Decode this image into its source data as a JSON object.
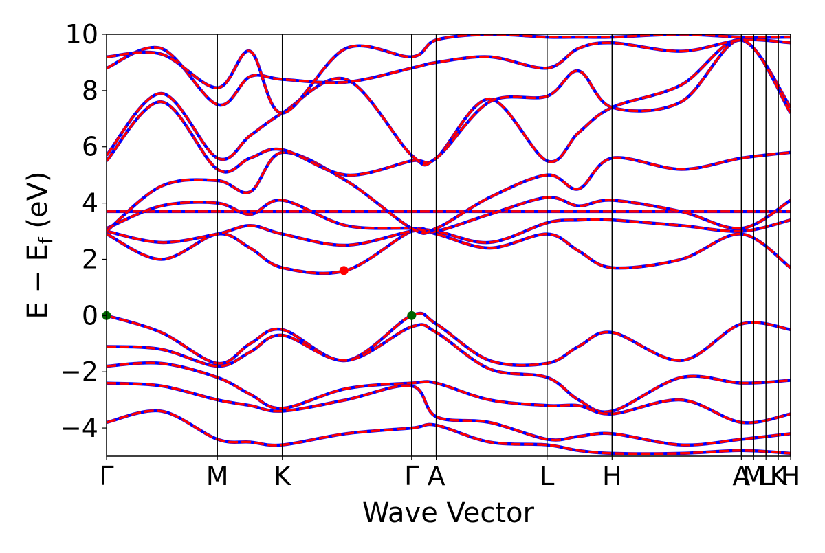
{
  "chart_data": {
    "type": "line",
    "title": "",
    "xlabel": "Wave Vector",
    "ylabel": "E − E",
    "ylabel_sub": "f",
    "ylabel_unit": " (eV)",
    "ylim": [
      -5,
      10
    ],
    "yticks": [
      {
        "value": -4,
        "label": "−4"
      },
      {
        "value": -2,
        "label": "−2"
      },
      {
        "value": 0,
        "label": "0"
      },
      {
        "value": 2,
        "label": "2"
      },
      {
        "value": 4,
        "label": "4"
      },
      {
        "value": 6,
        "label": "6"
      },
      {
        "value": 8,
        "label": "8"
      },
      {
        "value": 10,
        "label": "10"
      }
    ],
    "kpoints": [
      {
        "label": "Γ",
        "pos": 0.0
      },
      {
        "label": "M",
        "pos": 0.162
      },
      {
        "label": "K",
        "pos": 0.257
      },
      {
        "label": "Γ",
        "pos": 0.446
      },
      {
        "label": "A",
        "pos": 0.482
      },
      {
        "label": "L",
        "pos": 0.644
      },
      {
        "label": "H",
        "pos": 0.739
      },
      {
        "label": "A",
        "pos": 0.928
      },
      {
        "label": "M",
        "pos": 0.946
      },
      {
        "label": "L",
        "pos": 0.964
      },
      {
        "label": "K",
        "pos": 0.982
      },
      {
        "label": "H",
        "pos": 1.0
      }
    ],
    "colors": {
      "spin_up": "#0000ff",
      "spin_down": "#ff0000",
      "vbm": "#006400",
      "cbm": "#ff0000"
    },
    "markers": [
      {
        "name": "vbm",
        "x": 0.0,
        "y": 0.0,
        "color": "#006400"
      },
      {
        "name": "vbm",
        "x": 0.446,
        "y": 0.0,
        "color": "#006400"
      },
      {
        "name": "cbm",
        "x": 0.347,
        "y": 1.6,
        "color": "#ff0000"
      }
    ],
    "series": [
      {
        "x": [
          0.0,
          0.08,
          0.162,
          0.21,
          0.257,
          0.35,
          0.446,
          0.482,
          0.56,
          0.644,
          0.69,
          0.739,
          0.84,
          0.928,
          1.0
        ],
        "values": [
          0.0,
          -0.6,
          -1.7,
          -1.0,
          -0.5,
          -1.6,
          0.0,
          -0.3,
          -1.6,
          -1.7,
          -1.1,
          -0.6,
          -1.6,
          -0.3,
          -0.5
        ]
      },
      {
        "x": [
          0.0,
          0.08,
          0.162,
          0.21,
          0.257,
          0.35,
          0.446,
          0.482,
          0.56,
          0.644,
          0.69,
          0.739,
          0.84,
          0.928,
          1.0
        ],
        "values": [
          -1.1,
          -1.2,
          -1.8,
          -1.3,
          -0.7,
          -1.6,
          -0.4,
          -0.6,
          -1.9,
          -2.2,
          -3.0,
          -3.4,
          -2.2,
          -2.4,
          -2.3
        ]
      },
      {
        "x": [
          0.0,
          0.08,
          0.162,
          0.21,
          0.257,
          0.35,
          0.446,
          0.482,
          0.56,
          0.644,
          0.69,
          0.739,
          0.84,
          0.928,
          1.0
        ],
        "values": [
          -1.8,
          -1.7,
          -2.2,
          -2.8,
          -3.3,
          -2.6,
          -2.4,
          -2.4,
          -3.0,
          -3.2,
          -3.2,
          -3.5,
          -3.0,
          -3.8,
          -3.5
        ]
      },
      {
        "x": [
          0.0,
          0.08,
          0.162,
          0.21,
          0.257,
          0.35,
          0.446,
          0.482,
          0.56,
          0.644,
          0.69,
          0.739,
          0.84,
          0.928,
          1.0
        ],
        "values": [
          -2.4,
          -2.5,
          -3.0,
          -3.2,
          -3.4,
          -3.0,
          -2.5,
          -3.6,
          -3.8,
          -4.4,
          -4.3,
          -4.2,
          -4.6,
          -4.4,
          -4.2
        ]
      },
      {
        "x": [
          0.0,
          0.08,
          0.162,
          0.21,
          0.257,
          0.35,
          0.446,
          0.482,
          0.56,
          0.644,
          0.69,
          0.739,
          0.84,
          0.928,
          1.0
        ],
        "values": [
          -3.8,
          -3.4,
          -4.4,
          -4.5,
          -4.6,
          -4.2,
          -4.0,
          -3.9,
          -4.5,
          -4.6,
          -4.8,
          -4.9,
          -4.9,
          -4.8,
          -4.9
        ]
      },
      {
        "x": [
          0.0,
          0.08,
          0.162,
          0.21,
          0.257,
          0.35,
          0.446,
          0.482,
          0.56,
          0.644,
          0.69,
          0.739,
          0.84,
          0.928,
          1.0
        ],
        "values": [
          2.9,
          2.0,
          2.9,
          2.4,
          1.7,
          1.6,
          3.0,
          2.9,
          2.4,
          2.9,
          2.3,
          1.7,
          2.0,
          2.9,
          1.7
        ]
      },
      {
        "x": [
          0.0,
          0.08,
          0.162,
          0.21,
          0.257,
          0.35,
          0.446,
          0.482,
          0.56,
          0.644,
          0.69,
          0.739,
          0.84,
          0.928,
          1.0
        ],
        "values": [
          3.0,
          2.6,
          2.9,
          3.2,
          2.9,
          2.5,
          3.0,
          3.0,
          2.6,
          3.3,
          3.4,
          3.4,
          3.2,
          3.0,
          3.4
        ]
      },
      {
        "x": [
          0.0,
          0.08,
          0.162,
          0.21,
          0.257,
          0.35,
          0.446,
          0.482,
          0.56,
          0.644,
          0.69,
          0.739,
          0.84,
          0.928,
          1.0
        ],
        "values": [
          3.7,
          3.7,
          3.7,
          3.7,
          3.7,
          3.7,
          3.7,
          3.7,
          3.7,
          3.7,
          3.7,
          3.7,
          3.7,
          3.7,
          3.7
        ]
      },
      {
        "x": [
          0.0,
          0.08,
          0.162,
          0.21,
          0.257,
          0.35,
          0.446,
          0.482,
          0.56,
          0.644,
          0.69,
          0.739,
          0.84,
          0.928,
          1.0
        ],
        "values": [
          3.1,
          3.9,
          4.0,
          3.6,
          4.1,
          3.2,
          3.1,
          3.0,
          3.6,
          4.2,
          3.9,
          4.1,
          3.7,
          3.1,
          4.1
        ]
      },
      {
        "x": [
          0.0,
          0.08,
          0.162,
          0.21,
          0.257,
          0.35,
          0.446,
          0.482,
          0.56,
          0.644,
          0.69,
          0.739,
          0.84,
          0.928,
          1.0
        ],
        "values": [
          3.0,
          4.6,
          4.8,
          4.4,
          5.8,
          4.8,
          3.1,
          3.1,
          4.2,
          5.0,
          4.5,
          5.6,
          5.2,
          5.6,
          5.8
        ]
      },
      {
        "x": [
          0.0,
          0.08,
          0.162,
          0.21,
          0.257,
          0.35,
          0.446,
          0.482,
          0.56,
          0.644,
          0.69,
          0.739,
          0.84,
          0.928,
          1.0
        ],
        "values": [
          5.5,
          7.6,
          5.2,
          5.6,
          5.9,
          5.0,
          5.5,
          5.6,
          7.7,
          5.5,
          6.5,
          7.4,
          8.2,
          9.8,
          7.4
        ]
      },
      {
        "x": [
          0.0,
          0.08,
          0.162,
          0.21,
          0.257,
          0.35,
          0.446,
          0.482,
          0.56,
          0.644,
          0.69,
          0.739,
          0.84,
          0.928,
          1.0
        ],
        "values": [
          5.7,
          7.9,
          5.6,
          6.4,
          7.2,
          8.4,
          5.7,
          5.6,
          7.6,
          7.8,
          8.7,
          7.4,
          7.6,
          9.8,
          7.2
        ]
      },
      {
        "x": [
          0.0,
          0.08,
          0.162,
          0.21,
          0.257,
          0.35,
          0.446,
          0.482,
          0.56,
          0.644,
          0.69,
          0.739,
          0.84,
          0.928,
          1.0
        ],
        "values": [
          8.8,
          9.5,
          7.5,
          8.5,
          8.4,
          8.3,
          8.8,
          9.0,
          9.2,
          8.8,
          9.5,
          9.7,
          9.4,
          9.8,
          9.7
        ]
      },
      {
        "x": [
          0.0,
          0.08,
          0.162,
          0.21,
          0.257,
          0.35,
          0.446,
          0.482,
          0.56,
          0.644,
          0.69,
          0.739,
          0.84,
          0.928,
          1.0
        ],
        "values": [
          9.2,
          9.3,
          8.1,
          9.4,
          7.2,
          9.5,
          9.2,
          9.8,
          10.0,
          9.9,
          9.9,
          9.9,
          10.0,
          9.9,
          9.9
        ]
      }
    ]
  }
}
